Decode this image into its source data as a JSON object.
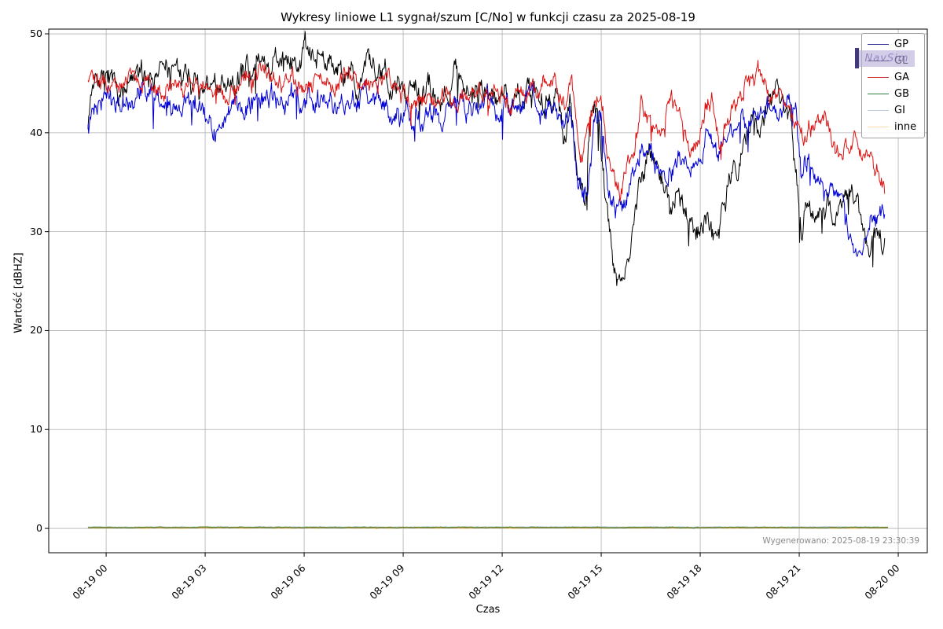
{
  "figure": {
    "background": "#ffffff",
    "watermark": {
      "text": "NavSim",
      "bar_color": "#2e2270"
    }
  },
  "annotations": {
    "generated": "Wygenerowano: 2025-08-19 23:30:39"
  },
  "chart_data": {
    "type": "line",
    "title": "Wykresy liniowe L1 sygnał/szum [C/No] w funkcji czasu za 2025-08-19",
    "xlabel": "Czas",
    "ylabel": "Wartość [dBHZ]",
    "x_unit": "hours since 2025-08-19 00:00",
    "x_tick_labels": [
      "08-19 00",
      "08-19 03",
      "08-19 06",
      "08-19 09",
      "08-19 12",
      "08-19 15",
      "08-19 18",
      "08-19 21",
      "08-20 00"
    ],
    "x_tick_hours": [
      0,
      3,
      6,
      9,
      12,
      15,
      18,
      21,
      24
    ],
    "y_ticks": [
      0,
      10,
      20,
      30,
      40,
      50
    ],
    "xlim_hours": [
      -1.74,
      24.88
    ],
    "ylim": [
      -2.46,
      50.48
    ],
    "grid": true,
    "legend_position": "upper right",
    "legend": [
      {
        "label": "GP",
        "sample_color": "#3e3a9c"
      },
      {
        "label": "GL",
        "sample_color": "#15131f"
      },
      {
        "label": "GA",
        "sample_color": "#cf3535"
      },
      {
        "label": "GB",
        "sample_color": "#2c7d3f"
      },
      {
        "label": "GI",
        "sample_color": "#b9cade"
      },
      {
        "label": "inne",
        "sample_color": "#ffdcab"
      }
    ],
    "series": [
      {
        "name": "GP",
        "color": "#000000",
        "width": 1,
        "noise_amp": 0.9,
        "spike_prob": 0.02,
        "spike_depth": 3.5,
        "seed": 7,
        "anchors": [
          [
            -0.55,
            41.5
          ],
          [
            -0.4,
            44.8
          ],
          [
            0,
            45
          ],
          [
            0.4,
            44
          ],
          [
            0.8,
            45.2
          ],
          [
            1.2,
            46.3
          ],
          [
            1.6,
            46.6
          ],
          [
            2,
            45.5
          ],
          [
            2.4,
            46.2
          ],
          [
            2.8,
            44.6
          ],
          [
            3.2,
            44.2
          ],
          [
            3.6,
            44.4
          ],
          [
            4,
            45.6
          ],
          [
            4.4,
            46.8
          ],
          [
            4.8,
            47.2
          ],
          [
            5.2,
            46.4
          ],
          [
            5.6,
            47
          ],
          [
            6,
            47.3
          ],
          [
            6.4,
            47.6
          ],
          [
            6.8,
            47.2
          ],
          [
            7.2,
            46.4
          ],
          [
            7.6,
            45.2
          ],
          [
            8,
            46.6
          ],
          [
            8.4,
            46.9
          ],
          [
            8.8,
            45.2
          ],
          [
            9.2,
            44.2
          ],
          [
            9.6,
            44.6
          ],
          [
            10,
            43.6
          ],
          [
            10.4,
            45.4
          ],
          [
            10.8,
            45.8
          ],
          [
            11.2,
            44.2
          ],
          [
            11.6,
            44.6
          ],
          [
            12,
            44.2
          ],
          [
            12.4,
            43.6
          ],
          [
            12.8,
            43.8
          ],
          [
            13.2,
            43.2
          ],
          [
            13.6,
            42.6
          ],
          [
            13.85,
            38.5
          ],
          [
            14.05,
            43
          ],
          [
            14.25,
            36
          ],
          [
            14.5,
            33.5
          ],
          [
            14.7,
            42.5
          ],
          [
            14.9,
            44
          ],
          [
            15.1,
            34
          ],
          [
            15.35,
            27.5
          ],
          [
            15.6,
            24.8
          ],
          [
            15.8,
            27.5
          ],
          [
            16,
            31
          ],
          [
            16.25,
            36.5
          ],
          [
            16.5,
            38
          ],
          [
            16.8,
            36
          ],
          [
            17.1,
            32
          ],
          [
            17.4,
            33.5
          ],
          [
            17.7,
            30.5
          ],
          [
            17.95,
            29.8
          ],
          [
            18.2,
            31.5
          ],
          [
            18.45,
            30.2
          ],
          [
            18.7,
            33
          ],
          [
            18.95,
            36.5
          ],
          [
            19.2,
            37.5
          ],
          [
            19.5,
            39.5
          ],
          [
            19.8,
            41.5
          ],
          [
            20.1,
            43.5
          ],
          [
            20.4,
            44.2
          ],
          [
            20.7,
            42.5
          ],
          [
            20.9,
            36
          ],
          [
            21.05,
            30
          ],
          [
            21.25,
            33
          ],
          [
            21.45,
            32.5
          ],
          [
            21.7,
            31
          ],
          [
            21.95,
            32
          ],
          [
            22.15,
            31.5
          ],
          [
            22.4,
            33
          ],
          [
            22.6,
            34.8
          ],
          [
            22.85,
            31
          ],
          [
            23.05,
            28.5
          ],
          [
            23.25,
            30
          ],
          [
            23.45,
            29
          ],
          [
            23.6,
            28.7
          ]
        ]
      },
      {
        "name": "GL",
        "color": "#0000d6",
        "width": 1,
        "noise_amp": 0.8,
        "spike_prob": 0.015,
        "spike_depth": 3,
        "seed": 13,
        "anchors": [
          [
            -0.55,
            40.8
          ],
          [
            -0.4,
            43.2
          ],
          [
            0,
            43.4
          ],
          [
            0.4,
            42.6
          ],
          [
            0.8,
            43.8
          ],
          [
            1.2,
            44.4
          ],
          [
            1.6,
            43.2
          ],
          [
            2,
            42.4
          ],
          [
            2.4,
            43.2
          ],
          [
            2.8,
            42.8
          ],
          [
            3.2,
            41.6
          ],
          [
            3.5,
            39
          ],
          [
            3.7,
            41.5
          ],
          [
            4,
            42.8
          ],
          [
            4.4,
            43.2
          ],
          [
            4.8,
            43.4
          ],
          [
            5.2,
            43
          ],
          [
            5.6,
            43.4
          ],
          [
            6,
            43.5
          ],
          [
            6.4,
            43.3
          ],
          [
            6.8,
            43.5
          ],
          [
            7.2,
            43.2
          ],
          [
            7.6,
            43.5
          ],
          [
            8,
            43.3
          ],
          [
            8.4,
            42.6
          ],
          [
            8.8,
            41.8
          ],
          [
            9.2,
            41.2
          ],
          [
            9.6,
            42.2
          ],
          [
            10,
            42.6
          ],
          [
            10.4,
            42.2
          ],
          [
            10.8,
            43
          ],
          [
            11.2,
            42.6
          ],
          [
            11.6,
            43
          ],
          [
            12,
            42.8
          ],
          [
            12.4,
            42.5
          ],
          [
            12.8,
            43
          ],
          [
            13.2,
            42.6
          ],
          [
            13.6,
            42.4
          ],
          [
            13.85,
            40
          ],
          [
            14.05,
            42.8
          ],
          [
            14.3,
            35.5
          ],
          [
            14.55,
            34
          ],
          [
            14.8,
            41
          ],
          [
            15,
            41.5
          ],
          [
            15.2,
            34.5
          ],
          [
            15.5,
            32.5
          ],
          [
            15.75,
            34
          ],
          [
            16,
            36
          ],
          [
            16.25,
            39.5
          ],
          [
            16.5,
            38
          ],
          [
            16.8,
            36.2
          ],
          [
            17.1,
            36.8
          ],
          [
            17.4,
            37.5
          ],
          [
            17.7,
            36.5
          ],
          [
            17.95,
            37
          ],
          [
            18.2,
            40
          ],
          [
            18.45,
            38.2
          ],
          [
            18.7,
            39.5
          ],
          [
            18.95,
            40.5
          ],
          [
            19.2,
            41
          ],
          [
            19.5,
            41.8
          ],
          [
            19.8,
            42.2
          ],
          [
            20.1,
            42.4
          ],
          [
            20.4,
            42.2
          ],
          [
            20.7,
            43
          ],
          [
            20.9,
            41.5
          ],
          [
            21.05,
            36
          ],
          [
            21.25,
            37
          ],
          [
            21.5,
            36
          ],
          [
            21.75,
            34.5
          ],
          [
            22,
            35
          ],
          [
            22.25,
            33.2
          ],
          [
            22.5,
            30
          ],
          [
            22.7,
            28
          ],
          [
            22.9,
            29.5
          ],
          [
            23.1,
            31
          ],
          [
            23.3,
            30.2
          ],
          [
            23.5,
            31.5
          ],
          [
            23.6,
            31.3
          ]
        ]
      },
      {
        "name": "GA",
        "color": "#dd1111",
        "width": 1,
        "noise_amp": 0.7,
        "spike_prob": 0.012,
        "spike_depth": 2.5,
        "seed": 21,
        "anchors": [
          [
            -0.55,
            45.4
          ],
          [
            0,
            45
          ],
          [
            0.4,
            44.6
          ],
          [
            0.8,
            45.4
          ],
          [
            1.2,
            45.1
          ],
          [
            1.6,
            44.6
          ],
          [
            2,
            44.9
          ],
          [
            2.4,
            44.5
          ],
          [
            2.8,
            44.8
          ],
          [
            3.2,
            44.3
          ],
          [
            3.6,
            44.1
          ],
          [
            4,
            44.6
          ],
          [
            4.4,
            45.4
          ],
          [
            4.8,
            45.8
          ],
          [
            5.2,
            45.2
          ],
          [
            5.6,
            44.7
          ],
          [
            6,
            44.6
          ],
          [
            6.4,
            45
          ],
          [
            6.8,
            45.2
          ],
          [
            7.2,
            44.9
          ],
          [
            7.6,
            44.7
          ],
          [
            8,
            45
          ],
          [
            8.4,
            45.4
          ],
          [
            8.8,
            44.7
          ],
          [
            9.2,
            43.8
          ],
          [
            9.6,
            43.3
          ],
          [
            10,
            43.1
          ],
          [
            10.4,
            43.6
          ],
          [
            10.8,
            44
          ],
          [
            11.2,
            43.8
          ],
          [
            11.6,
            44
          ],
          [
            12,
            44.1
          ],
          [
            12.3,
            43.2
          ],
          [
            12.6,
            44.6
          ],
          [
            13,
            44.1
          ],
          [
            13.3,
            45.6
          ],
          [
            13.6,
            44.2
          ],
          [
            13.9,
            42
          ],
          [
            14.1,
            44.6
          ],
          [
            14.4,
            38
          ],
          [
            14.7,
            42
          ],
          [
            15,
            44.6
          ],
          [
            15.2,
            37
          ],
          [
            15.5,
            34
          ],
          [
            15.75,
            36
          ],
          [
            16,
            38.5
          ],
          [
            16.2,
            43.5
          ],
          [
            16.5,
            41
          ],
          [
            16.8,
            39
          ],
          [
            17.1,
            43
          ],
          [
            17.4,
            42
          ],
          [
            17.7,
            38
          ],
          [
            17.95,
            37.6
          ],
          [
            18.15,
            42
          ],
          [
            18.35,
            44
          ],
          [
            18.6,
            38
          ],
          [
            18.9,
            42
          ],
          [
            19.2,
            44
          ],
          [
            19.5,
            45.2
          ],
          [
            19.75,
            46
          ],
          [
            20,
            44.6
          ],
          [
            20.3,
            43.2
          ],
          [
            20.6,
            43.6
          ],
          [
            20.9,
            42
          ],
          [
            21.1,
            39
          ],
          [
            21.35,
            41
          ],
          [
            21.6,
            40.5
          ],
          [
            21.9,
            41
          ],
          [
            22.1,
            38
          ],
          [
            22.4,
            39.5
          ],
          [
            22.7,
            38.5
          ],
          [
            23,
            36.5
          ],
          [
            23.2,
            37.2
          ],
          [
            23.4,
            35.8
          ],
          [
            23.6,
            34.5
          ]
        ]
      },
      {
        "name": "GI",
        "color": "#b9cade",
        "width": 1.2,
        "noise_amp": 0.02,
        "spike_prob": 0,
        "spike_depth": 0,
        "seed": 31,
        "anchors": [
          [
            -0.55,
            0.14
          ],
          [
            23.7,
            0.14
          ]
        ]
      },
      {
        "name": "inne",
        "color": "#e8b45e",
        "width": 1.2,
        "noise_amp": 0.02,
        "spike_prob": 0,
        "spike_depth": 0,
        "seed": 41,
        "anchors": [
          [
            -0.55,
            0.05
          ],
          [
            23.7,
            0.05
          ]
        ]
      },
      {
        "name": "GB",
        "color": "#55791e",
        "width": 1.3,
        "noise_amp": 0.02,
        "spike_prob": 0,
        "spike_depth": 0,
        "seed": 37,
        "anchors": [
          [
            -0.55,
            0.1
          ],
          [
            23.7,
            0.1
          ]
        ]
      }
    ]
  }
}
